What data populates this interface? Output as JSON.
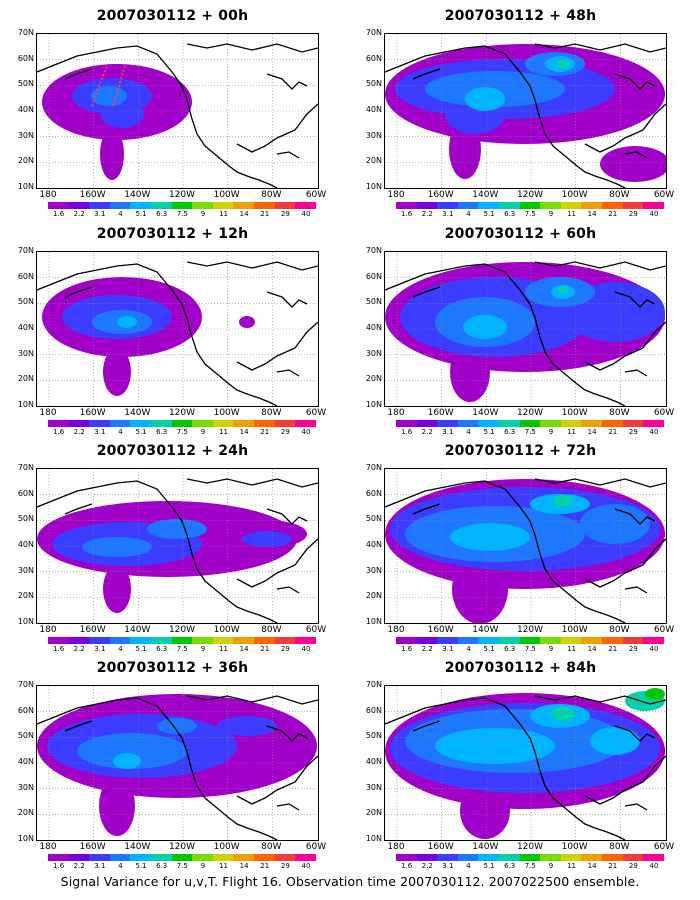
{
  "caption": "Signal Variance for u,v,T. Flight 16. Observation time 2007030112. 2007022500 ensemble.",
  "y_ticks": [
    "70N",
    "60N",
    "50N",
    "40N",
    "30N",
    "20N",
    "10N"
  ],
  "x_ticks": [
    "180",
    "160W",
    "140W",
    "120W",
    "100W",
    "80W",
    "60W"
  ],
  "colorbar_labels": [
    "1.6",
    "2.2",
    "3.1",
    "4",
    "5.1",
    "6.3",
    "7.5",
    "9",
    "11",
    "14",
    "21",
    "29",
    "40"
  ],
  "colorbar_colors": [
    "#a000c8",
    "#7800dc",
    "#3c3cff",
    "#1e78ff",
    "#00b4ff",
    "#00d2aa",
    "#00c800",
    "#78dc00",
    "#d2d200",
    "#f0a000",
    "#ff6400",
    "#f03c3c",
    "#ff0096"
  ],
  "map_region": "North Pacific / North America, 10N-70N, 180-60W",
  "panels": [
    {
      "title": "2007030112 + 00h",
      "lead": "00h"
    },
    {
      "title": "2007030112 + 48h",
      "lead": "48h"
    },
    {
      "title": "2007030112 + 12h",
      "lead": "12h"
    },
    {
      "title": "2007030112 + 60h",
      "lead": "60h"
    },
    {
      "title": "2007030112 + 24h",
      "lead": "24h"
    },
    {
      "title": "2007030112 + 72h",
      "lead": "72h"
    },
    {
      "title": "2007030112 + 36h",
      "lead": "36h"
    },
    {
      "title": "2007030112 + 84h",
      "lead": "84h"
    }
  ]
}
